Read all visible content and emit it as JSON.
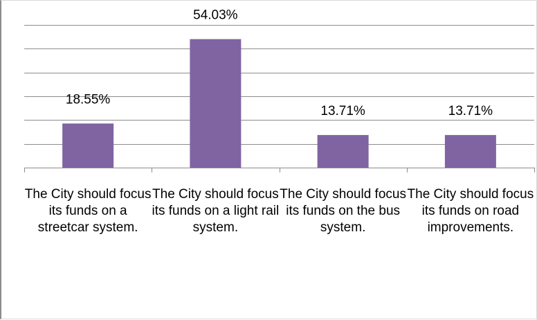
{
  "chart_data": {
    "type": "bar",
    "categories": [
      "The City should focus its funds on a streetcar system.",
      "The City should focus its funds on a light rail system.",
      "The City should focus its funds on the bus system.",
      "The City should focus its funds on road improvements."
    ],
    "values": [
      18.55,
      54.03,
      13.71,
      13.71
    ],
    "data_labels": [
      "18.55%",
      "54.03%",
      "13.71%",
      "13.71%"
    ],
    "unit": "%",
    "ylim": [
      0,
      60
    ],
    "grid": true,
    "legend": "none",
    "bar_color": "#8064a2"
  }
}
